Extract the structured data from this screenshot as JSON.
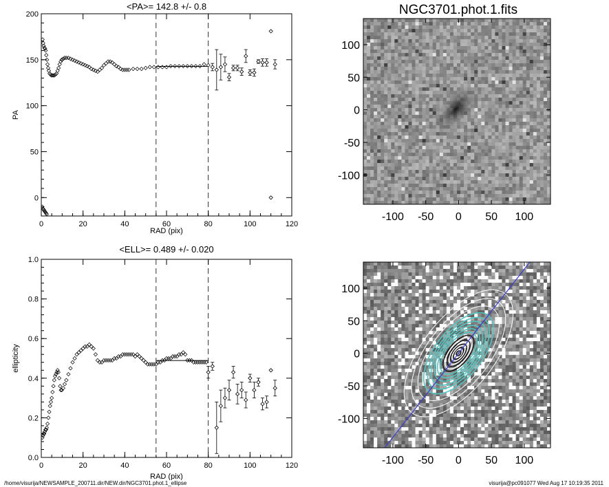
{
  "footer": {
    "path": "/home/visurija/NEWSAMPLE_200711.dir/NEW.dir/NGC3701.phot.1_ellipse",
    "stamp": "visurija@pc091077  Wed Aug 17 10:19:35 2011"
  },
  "chart_data": [
    {
      "type": "scatter",
      "title": "<PA>= 142.8 +/-   0.8",
      "xlabel": "RAD (pix)",
      "ylabel": "PA",
      "xlim": [
        0,
        120
      ],
      "ylim": [
        -20,
        200
      ],
      "xticks": [
        0,
        20,
        40,
        60,
        80,
        100,
        120
      ],
      "yticks": [
        0,
        50,
        100,
        150,
        200
      ],
      "vlines": [
        55,
        80
      ],
      "mean_line": {
        "x": [
          55,
          80
        ],
        "y": 142.8
      },
      "dense_points": [
        [
          0.6,
          172
        ],
        [
          0.9,
          168
        ],
        [
          1.2,
          165
        ],
        [
          1.5,
          163
        ],
        [
          1.8,
          162
        ],
        [
          2.1,
          160
        ],
        [
          2.4,
          155
        ],
        [
          2.7,
          150
        ],
        [
          3.0,
          145
        ],
        [
          3.3,
          141
        ],
        [
          3.6,
          138
        ],
        [
          4.0,
          135
        ],
        [
          4.4,
          134
        ],
        [
          4.8,
          133
        ],
        [
          5.3,
          133
        ],
        [
          5.8,
          133
        ],
        [
          6.3,
          133
        ],
        [
          6.8,
          134
        ],
        [
          7.3,
          135
        ],
        [
          7.8,
          138
        ],
        [
          8.3,
          141
        ],
        [
          8.8,
          145
        ],
        [
          9.3,
          148
        ],
        [
          9.8,
          150
        ],
        [
          10.5,
          151
        ],
        [
          11.2,
          152
        ],
        [
          12.0,
          152
        ],
        [
          13.0,
          152
        ],
        [
          14.0,
          151
        ],
        [
          15.0,
          150
        ],
        [
          16.0,
          149
        ],
        [
          17.0,
          148
        ],
        [
          18.0,
          147
        ],
        [
          19.0,
          146
        ],
        [
          20.0,
          145
        ],
        [
          21.0,
          144
        ],
        [
          22.0,
          143
        ],
        [
          23.0,
          142
        ],
        [
          24.0,
          140
        ],
        [
          25.0,
          139
        ],
        [
          26.0,
          138
        ],
        [
          27.0,
          137
        ],
        [
          28.0,
          139
        ],
        [
          29.0,
          141
        ],
        [
          30.0,
          144
        ],
        [
          31.0,
          146
        ],
        [
          32.0,
          148
        ],
        [
          33.0,
          148
        ],
        [
          34.0,
          147
        ],
        [
          35.0,
          145
        ],
        [
          36.0,
          143
        ],
        [
          37.0,
          142
        ],
        [
          38.0,
          140
        ],
        [
          39.0,
          139
        ],
        [
          40.0,
          139
        ],
        [
          41.0,
          139
        ],
        [
          42.0,
          139
        ],
        [
          44.0,
          140
        ],
        [
          46.0,
          140
        ],
        [
          48.0,
          140
        ],
        [
          50.0,
          141
        ],
        [
          52.0,
          142
        ],
        [
          54.0,
          142
        ],
        [
          56.0,
          142
        ],
        [
          58.0,
          142
        ],
        [
          60.0,
          142
        ],
        [
          62.0,
          143
        ],
        [
          64.0,
          143
        ],
        [
          66.0,
          143
        ],
        [
          68.0,
          143
        ],
        [
          70.0,
          143
        ],
        [
          72.0,
          143
        ],
        [
          74.0,
          143
        ],
        [
          76.0,
          143
        ],
        [
          78.0,
          145
        ],
        [
          80.0,
          144
        ],
        [
          0.5,
          -10
        ],
        [
          0.8,
          -12
        ],
        [
          1.1,
          -13
        ],
        [
          1.4,
          -14
        ],
        [
          1.7,
          -15
        ],
        [
          2.0,
          -16
        ],
        [
          2.3,
          -17
        ],
        [
          2.6,
          -18
        ]
      ],
      "error_points": [
        {
          "x": 82,
          "y": 142,
          "err": 4
        },
        {
          "x": 84,
          "y": 139,
          "err": 22
        },
        {
          "x": 86,
          "y": 142,
          "err": 14
        },
        {
          "x": 88,
          "y": 145,
          "err": 8
        },
        {
          "x": 90,
          "y": 131,
          "err": 4
        },
        {
          "x": 92,
          "y": 141,
          "err": 3
        },
        {
          "x": 94,
          "y": 141,
          "err": 3
        },
        {
          "x": 96,
          "y": 137,
          "err": 4
        },
        {
          "x": 98,
          "y": 154,
          "err": 7
        },
        {
          "x": 100,
          "y": 136,
          "err": 3
        },
        {
          "x": 102,
          "y": 136,
          "err": 4
        },
        {
          "x": 104,
          "y": 148,
          "err": 2
        },
        {
          "x": 106,
          "y": 147,
          "err": 4
        },
        {
          "x": 108,
          "y": 147,
          "err": 4
        },
        {
          "x": 110,
          "y": 181,
          "err": 0
        },
        {
          "x": 110,
          "y": 0,
          "err": 0
        },
        {
          "x": 112,
          "y": 145,
          "err": 5
        }
      ]
    },
    {
      "type": "scatter",
      "title": "<ELL>= 0.489 +/-  0.020",
      "xlabel": "RAD (pix)",
      "ylabel": "ellipticity",
      "xlim": [
        0,
        120
      ],
      "ylim": [
        0,
        1
      ],
      "xticks": [
        0,
        20,
        40,
        60,
        80,
        100,
        120
      ],
      "yticks": [
        0.0,
        0.2,
        0.4,
        0.6,
        0.8,
        1.0
      ],
      "vlines": [
        55,
        80
      ],
      "mean_line": {
        "x": [
          55,
          80
        ],
        "y": 0.489
      },
      "dense_points": [
        [
          0.5,
          0.1
        ],
        [
          0.8,
          0.11
        ],
        [
          1.1,
          0.12
        ],
        [
          1.4,
          0.12
        ],
        [
          1.7,
          0.13
        ],
        [
          2.0,
          0.14
        ],
        [
          2.3,
          0.14
        ],
        [
          2.6,
          0.15
        ],
        [
          3.0,
          0.17
        ],
        [
          3.4,
          0.2
        ],
        [
          3.8,
          0.23
        ],
        [
          4.2,
          0.26
        ],
        [
          4.6,
          0.28
        ],
        [
          5.0,
          0.3
        ],
        [
          5.4,
          0.33
        ],
        [
          5.8,
          0.36
        ],
        [
          6.2,
          0.39
        ],
        [
          6.6,
          0.41
        ],
        [
          7.0,
          0.42
        ],
        [
          7.4,
          0.43
        ],
        [
          7.8,
          0.44
        ],
        [
          8.2,
          0.43
        ],
        [
          8.6,
          0.4
        ],
        [
          9.0,
          0.36
        ],
        [
          9.4,
          0.34
        ],
        [
          9.8,
          0.34
        ],
        [
          10.5,
          0.35
        ],
        [
          11.2,
          0.37
        ],
        [
          12.0,
          0.39
        ],
        [
          13.0,
          0.42
        ],
        [
          14.0,
          0.45
        ],
        [
          15.0,
          0.48
        ],
        [
          16.0,
          0.5
        ],
        [
          17.0,
          0.52
        ],
        [
          18.0,
          0.53
        ],
        [
          19.0,
          0.54
        ],
        [
          20.0,
          0.55
        ],
        [
          21.0,
          0.56
        ],
        [
          22.0,
          0.56
        ],
        [
          23.0,
          0.57
        ],
        [
          24.0,
          0.56
        ],
        [
          25.0,
          0.55
        ],
        [
          26.0,
          0.52
        ],
        [
          27.0,
          0.49
        ],
        [
          28.0,
          0.48
        ],
        [
          29.0,
          0.48
        ],
        [
          30.0,
          0.49
        ],
        [
          31.0,
          0.49
        ],
        [
          32.0,
          0.49
        ],
        [
          33.0,
          0.49
        ],
        [
          34.0,
          0.49
        ],
        [
          35.0,
          0.5
        ],
        [
          36.0,
          0.5
        ],
        [
          37.0,
          0.51
        ],
        [
          38.0,
          0.51
        ],
        [
          39.0,
          0.52
        ],
        [
          40.0,
          0.52
        ],
        [
          41.0,
          0.52
        ],
        [
          42.0,
          0.52
        ],
        [
          43.0,
          0.52
        ],
        [
          44.0,
          0.52
        ],
        [
          45.0,
          0.51
        ],
        [
          46.0,
          0.52
        ],
        [
          47.0,
          0.51
        ],
        [
          48.0,
          0.5
        ],
        [
          49.0,
          0.49
        ],
        [
          50.0,
          0.48
        ],
        [
          51.0,
          0.47
        ],
        [
          52.0,
          0.47
        ],
        [
          53.0,
          0.47
        ],
        [
          54.0,
          0.47
        ],
        [
          55.0,
          0.47
        ],
        [
          56.0,
          0.48
        ],
        [
          57.0,
          0.48
        ],
        [
          58.0,
          0.49
        ],
        [
          59.0,
          0.49
        ],
        [
          60.0,
          0.5
        ],
        [
          61.0,
          0.5
        ],
        [
          62.0,
          0.5
        ],
        [
          63.0,
          0.51
        ],
        [
          64.0,
          0.51
        ],
        [
          65.0,
          0.51
        ],
        [
          66.0,
          0.52
        ],
        [
          67.0,
          0.52
        ],
        [
          68.0,
          0.53
        ],
        [
          69.0,
          0.52
        ],
        [
          70.0,
          0.49
        ],
        [
          71.0,
          0.49
        ],
        [
          72.0,
          0.49
        ],
        [
          73.0,
          0.48
        ],
        [
          74.0,
          0.48
        ],
        [
          75.0,
          0.48
        ],
        [
          76.0,
          0.48
        ],
        [
          77.0,
          0.48
        ],
        [
          78.0,
          0.48
        ],
        [
          79.0,
          0.48
        ]
      ],
      "error_points": [
        {
          "x": 80,
          "y": 0.43,
          "err": 0.03
        },
        {
          "x": 82,
          "y": 0.46,
          "err": 0.02
        },
        {
          "x": 84,
          "y": 0.15,
          "err": 0.13
        },
        {
          "x": 86,
          "y": 0.26,
          "err": 0.08
        },
        {
          "x": 88,
          "y": 0.3,
          "err": 0.05
        },
        {
          "x": 90,
          "y": 0.34,
          "err": 0.05
        },
        {
          "x": 92,
          "y": 0.43,
          "err": 0.03
        },
        {
          "x": 94,
          "y": 0.32,
          "err": 0.05
        },
        {
          "x": 96,
          "y": 0.34,
          "err": 0.04
        },
        {
          "x": 98,
          "y": 0.29,
          "err": 0.04
        },
        {
          "x": 100,
          "y": 0.4,
          "err": 0.02
        },
        {
          "x": 102,
          "y": 0.34,
          "err": 0.04
        },
        {
          "x": 104,
          "y": 0.38,
          "err": 0.02
        },
        {
          "x": 106,
          "y": 0.27,
          "err": 0.03
        },
        {
          "x": 108,
          "y": 0.28,
          "err": 0.03
        },
        {
          "x": 110,
          "y": 0.44,
          "err": 0.0
        },
        {
          "x": 112,
          "y": 0.35,
          "err": 0.04
        }
      ]
    },
    {
      "type": "heatmap",
      "title": "NGC3701.phot.1.fits",
      "xlim": [
        -145,
        140
      ],
      "ylim": [
        -145,
        140
      ],
      "xticks": [
        -100,
        -50,
        0,
        50,
        100
      ],
      "yticks": [
        -100,
        -50,
        0,
        50,
        100
      ],
      "colormap": "grayscale"
    },
    {
      "type": "heatmap",
      "xlim": [
        -145,
        140
      ],
      "ylim": [
        -145,
        140
      ],
      "xticks": [
        -100,
        -50,
        0,
        50,
        100
      ],
      "yticks": [
        -100,
        -50,
        0,
        50,
        100
      ],
      "colormap": "grayscale",
      "overlay": "isophote-ellipses",
      "position_angle_line_color": "#3b3bd6",
      "contour_colors": [
        "#ffffff",
        "#4fc7c2",
        "#111111"
      ]
    }
  ]
}
